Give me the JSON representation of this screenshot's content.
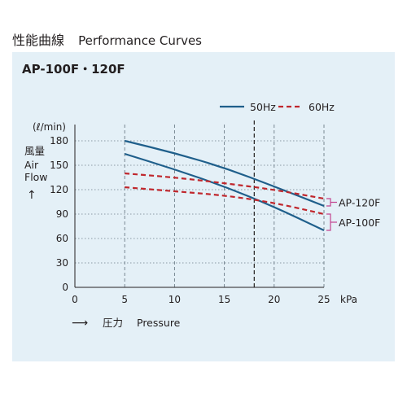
{
  "header": {
    "title_jp": "性能曲線",
    "title_en": "Performance Curves"
  },
  "panel": {
    "model": "AP-100F・120F",
    "bg_color": "#e4f0f7"
  },
  "chart_data": {
    "type": "line",
    "x_unit": "kPa",
    "y_unit": "(ℓ/min)",
    "ylabel_jp": "風量",
    "ylabel_en_1": "Air",
    "ylabel_en_2": "Flow",
    "xlabel_jp": "圧力",
    "xlabel_en": "Pressure",
    "xlim": [
      0,
      25
    ],
    "ylim": [
      0,
      180
    ],
    "xticks": [
      0,
      5,
      10,
      15,
      20,
      25
    ],
    "yticks": [
      0,
      30,
      60,
      90,
      120,
      150,
      180
    ],
    "grid": "vertical dashed, horizontal dotted",
    "reference_line_x": 18,
    "legend": [
      {
        "label": "50Hz",
        "style": "solid",
        "color": "#1f5f8b"
      },
      {
        "label": "60Hz",
        "style": "dashed",
        "color": "#c0272d"
      }
    ],
    "series": [
      {
        "model": "AP-120F",
        "freq": "50Hz",
        "color": "#1f5f8b",
        "style": "solid",
        "points": [
          [
            5,
            180
          ],
          [
            10,
            165
          ],
          [
            15,
            147
          ],
          [
            20,
            124
          ],
          [
            25,
            100
          ]
        ]
      },
      {
        "model": "AP-100F",
        "freq": "50Hz",
        "color": "#1f5f8b",
        "style": "solid",
        "points": [
          [
            5,
            164
          ],
          [
            10,
            145
          ],
          [
            15,
            124
          ],
          [
            20,
            99
          ],
          [
            25,
            70
          ]
        ]
      },
      {
        "model": "AP-120F",
        "freq": "60Hz",
        "color": "#c0272d",
        "style": "dashed",
        "points": [
          [
            5,
            140
          ],
          [
            10,
            135
          ],
          [
            15,
            128
          ],
          [
            20,
            120
          ],
          [
            25,
            109
          ]
        ]
      },
      {
        "model": "AP-100F",
        "freq": "60Hz",
        "color": "#c0272d",
        "style": "dashed",
        "points": [
          [
            5,
            123
          ],
          [
            10,
            118
          ],
          [
            15,
            113
          ],
          [
            20,
            104
          ],
          [
            25,
            90
          ]
        ]
      }
    ],
    "annotations": [
      {
        "label": "AP-120F",
        "hi": 109,
        "lo": 100
      },
      {
        "label": "AP-100F",
        "hi": 90,
        "lo": 70
      }
    ],
    "bracket_color": "#c2448f"
  }
}
